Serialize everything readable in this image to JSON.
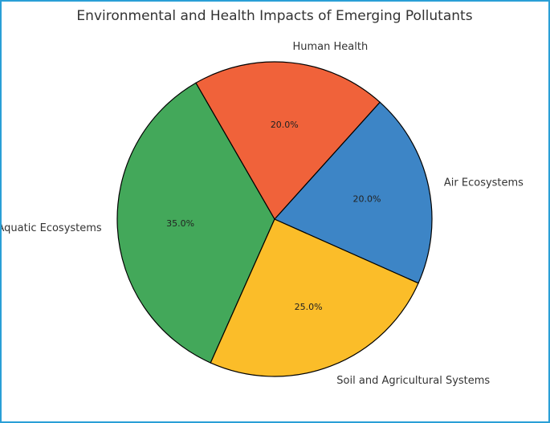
{
  "chart_data": {
    "type": "pie",
    "title": "Environmental and Health Impacts of Emerging Pollutants",
    "categories": [
      "Aquatic Ecosystems",
      "Soil and Agricultural Systems",
      "Air Ecosystems",
      "Human Health"
    ],
    "values": [
      35,
      25,
      20,
      20
    ],
    "percent_labels": [
      "35.0%",
      "25.0%",
      "20.0%",
      "20.0%"
    ],
    "colors": [
      "#43a85a",
      "#fbbd29",
      "#3d85c6",
      "#f0623a"
    ],
    "start_angle_deg": 120,
    "direction": "counterclockwise",
    "edge_color": "#000000"
  }
}
